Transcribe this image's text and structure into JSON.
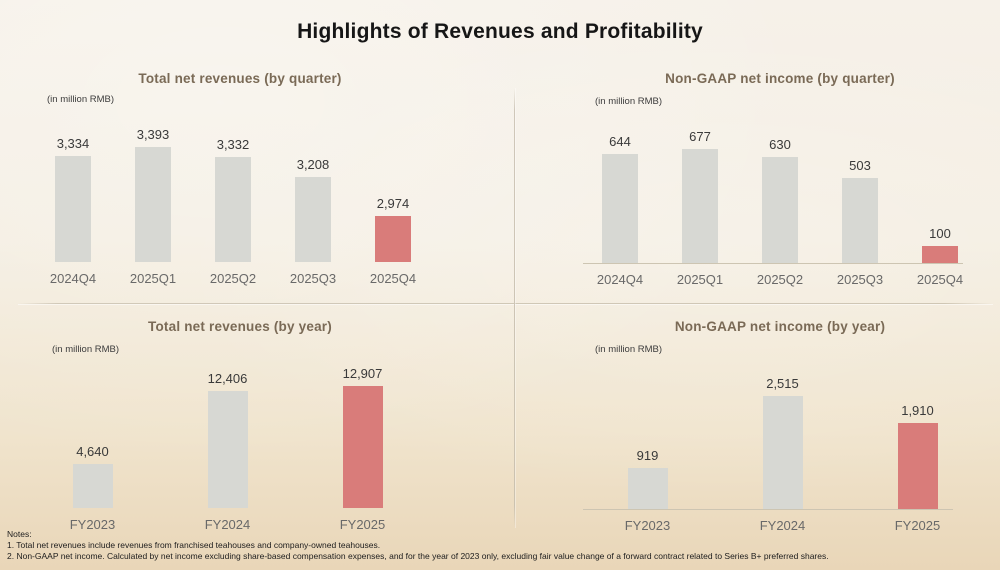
{
  "page": {
    "title": "Highlights of Revenues and Profitability",
    "notes_label": "Notes:",
    "notes": [
      "1.   Total net revenues include revenues from franchised teahouses and company-owned teahouses.",
      "2.   Non-GAAP net income. Calculated by net income excluding share-based compensation expenses, and for the year of 2023 only, excluding fair value change of a forward contract related to Series B+ preferred shares."
    ]
  },
  "colors": {
    "bar_default": "#d7d8d3",
    "bar_highlight": "#d97c7a",
    "main_title_text": "#161616",
    "chart_title_text": "#7a6a56",
    "value_label_text": "#3a3a3a",
    "axis_label_text": "#696969",
    "divider": "#cfc6b4",
    "background_top": "#f6f1e9",
    "background_bottom": "#e9d6b8"
  },
  "chart_data": [
    {
      "type": "bar",
      "title": "Total net revenues (by quarter)",
      "unit_label": "(in million RMB)",
      "categories": [
        "2024Q4",
        "2025Q1",
        "2025Q2",
        "2025Q3",
        "2025Q4"
      ],
      "values": [
        3334,
        3393,
        3332,
        3208,
        2974
      ],
      "value_labels": [
        "3,334",
        "3,393",
        "3,332",
        "3,208",
        "2,974"
      ],
      "highlight_index": 4,
      "ylim": [
        2700,
        3450
      ],
      "grid": false,
      "legend": false,
      "baseline_axis": false
    },
    {
      "type": "bar",
      "title": "Non-GAAP net income (by quarter)",
      "unit_label": "(in million RMB)",
      "categories": [
        "2024Q4",
        "2025Q1",
        "2025Q2",
        "2025Q3",
        "2025Q4"
      ],
      "values": [
        644,
        677,
        630,
        503,
        100
      ],
      "value_labels": [
        "644",
        "677",
        "630",
        "503",
        "100"
      ],
      "highlight_index": 4,
      "ylim": [
        0,
        700
      ],
      "grid": false,
      "legend": false,
      "baseline_axis": true
    },
    {
      "type": "bar",
      "title": "Total net revenues (by year)",
      "unit_label": "(in million RMB)",
      "categories": [
        "FY2023",
        "FY2024",
        "FY2025"
      ],
      "values": [
        4640,
        12406,
        12907
      ],
      "value_labels": [
        "4,640",
        "12,406",
        "12,907"
      ],
      "highlight_index": 2,
      "ylim": [
        0,
        13000
      ],
      "grid": false,
      "legend": false,
      "baseline_axis": false
    },
    {
      "type": "bar",
      "title": "Non-GAAP net income (by year)",
      "unit_label": "(in million RMB)",
      "categories": [
        "FY2023",
        "FY2024",
        "FY2025"
      ],
      "values": [
        919,
        2515,
        1910
      ],
      "value_labels": [
        "919",
        "2,515",
        "1,910"
      ],
      "highlight_index": 2,
      "ylim": [
        0,
        2600
      ],
      "grid": false,
      "legend": false,
      "baseline_axis": true
    }
  ]
}
